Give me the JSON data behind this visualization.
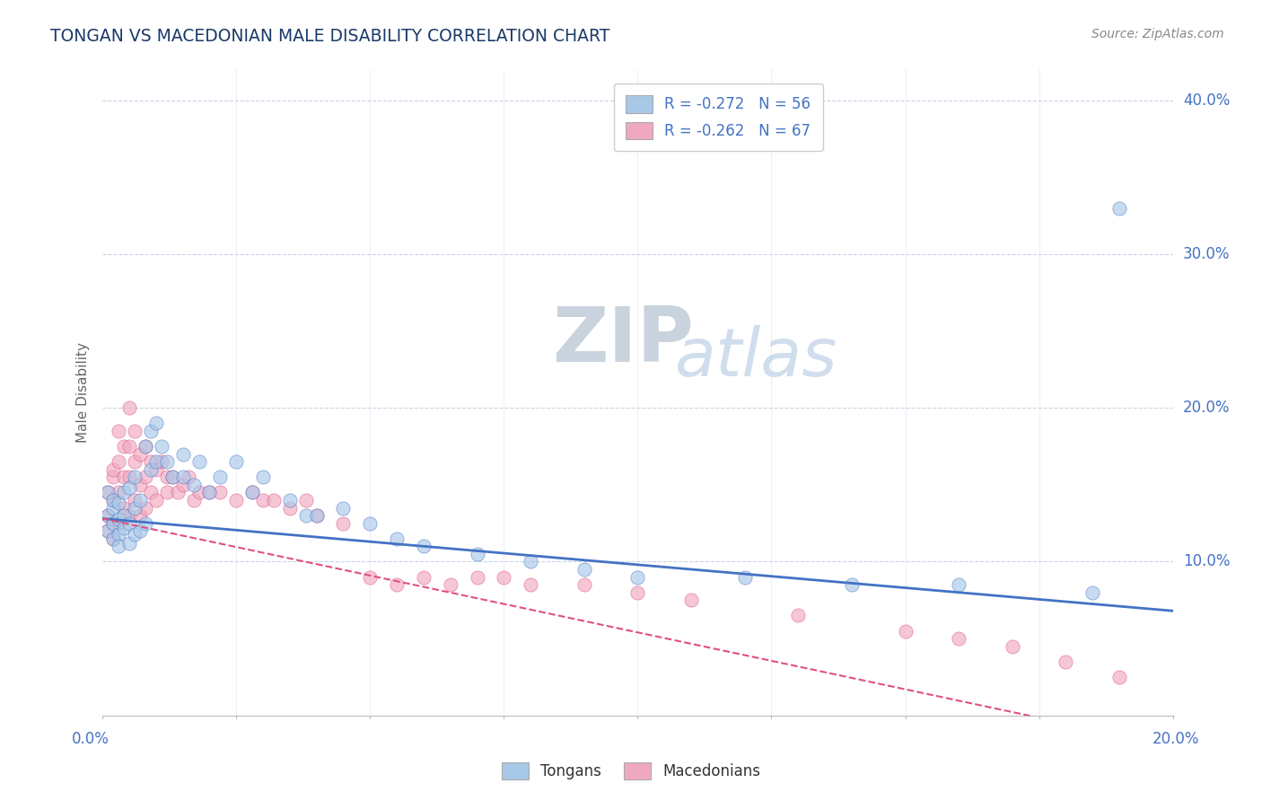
{
  "title": "TONGAN VS MACEDONIAN MALE DISABILITY CORRELATION CHART",
  "source": "Source: ZipAtlas.com",
  "ylabel": "Male Disability",
  "legend_bottom": [
    "Tongans",
    "Macedonians"
  ],
  "tongan_R": -0.272,
  "tongan_N": 56,
  "macedonian_R": -0.262,
  "macedonian_N": 67,
  "tongan_color": "#a8c8e8",
  "macedonian_color": "#f0a8c0",
  "tongan_line_color": "#4472c4",
  "macedonian_line_color": "#e05080",
  "background_color": "#ffffff",
  "grid_color": "#c8d4e8",
  "title_color": "#1a3a6a",
  "axis_label_color": "#4472c4",
  "xmin": 0.0,
  "xmax": 0.2,
  "ymin": 0.0,
  "ymax": 0.42,
  "tongan_x": [
    0.001,
    0.001,
    0.001,
    0.002,
    0.002,
    0.002,
    0.002,
    0.003,
    0.003,
    0.003,
    0.003,
    0.004,
    0.004,
    0.004,
    0.005,
    0.005,
    0.005,
    0.006,
    0.006,
    0.006,
    0.007,
    0.007,
    0.008,
    0.008,
    0.009,
    0.009,
    0.01,
    0.01,
    0.011,
    0.012,
    0.013,
    0.015,
    0.015,
    0.017,
    0.018,
    0.02,
    0.022,
    0.025,
    0.028,
    0.03,
    0.035,
    0.038,
    0.04,
    0.045,
    0.05,
    0.055,
    0.06,
    0.07,
    0.08,
    0.09,
    0.1,
    0.12,
    0.14,
    0.16,
    0.185,
    0.19
  ],
  "tongan_y": [
    0.13,
    0.12,
    0.145,
    0.125,
    0.135,
    0.115,
    0.14,
    0.118,
    0.128,
    0.138,
    0.11,
    0.13,
    0.145,
    0.122,
    0.125,
    0.148,
    0.112,
    0.155,
    0.118,
    0.135,
    0.14,
    0.12,
    0.175,
    0.125,
    0.16,
    0.185,
    0.165,
    0.19,
    0.175,
    0.165,
    0.155,
    0.155,
    0.17,
    0.15,
    0.165,
    0.145,
    0.155,
    0.165,
    0.145,
    0.155,
    0.14,
    0.13,
    0.13,
    0.135,
    0.125,
    0.115,
    0.11,
    0.105,
    0.1,
    0.095,
    0.09,
    0.09,
    0.085,
    0.085,
    0.08,
    0.33
  ],
  "macedonian_x": [
    0.001,
    0.001,
    0.001,
    0.002,
    0.002,
    0.002,
    0.002,
    0.002,
    0.003,
    0.003,
    0.003,
    0.003,
    0.004,
    0.004,
    0.004,
    0.005,
    0.005,
    0.005,
    0.005,
    0.006,
    0.006,
    0.006,
    0.007,
    0.007,
    0.007,
    0.008,
    0.008,
    0.008,
    0.009,
    0.009,
    0.01,
    0.01,
    0.011,
    0.012,
    0.012,
    0.013,
    0.014,
    0.015,
    0.016,
    0.017,
    0.018,
    0.02,
    0.022,
    0.025,
    0.028,
    0.03,
    0.032,
    0.035,
    0.038,
    0.04,
    0.045,
    0.05,
    0.055,
    0.06,
    0.065,
    0.07,
    0.075,
    0.08,
    0.09,
    0.1,
    0.11,
    0.13,
    0.15,
    0.16,
    0.17,
    0.18,
    0.19
  ],
  "macedonian_y": [
    0.145,
    0.13,
    0.12,
    0.155,
    0.14,
    0.125,
    0.16,
    0.115,
    0.185,
    0.165,
    0.145,
    0.125,
    0.175,
    0.155,
    0.135,
    0.2,
    0.175,
    0.155,
    0.13,
    0.185,
    0.165,
    0.14,
    0.17,
    0.15,
    0.13,
    0.175,
    0.155,
    0.135,
    0.165,
    0.145,
    0.16,
    0.14,
    0.165,
    0.155,
    0.145,
    0.155,
    0.145,
    0.15,
    0.155,
    0.14,
    0.145,
    0.145,
    0.145,
    0.14,
    0.145,
    0.14,
    0.14,
    0.135,
    0.14,
    0.13,
    0.125,
    0.09,
    0.085,
    0.09,
    0.085,
    0.09,
    0.09,
    0.085,
    0.085,
    0.08,
    0.075,
    0.065,
    0.055,
    0.05,
    0.045,
    0.035,
    0.025
  ]
}
